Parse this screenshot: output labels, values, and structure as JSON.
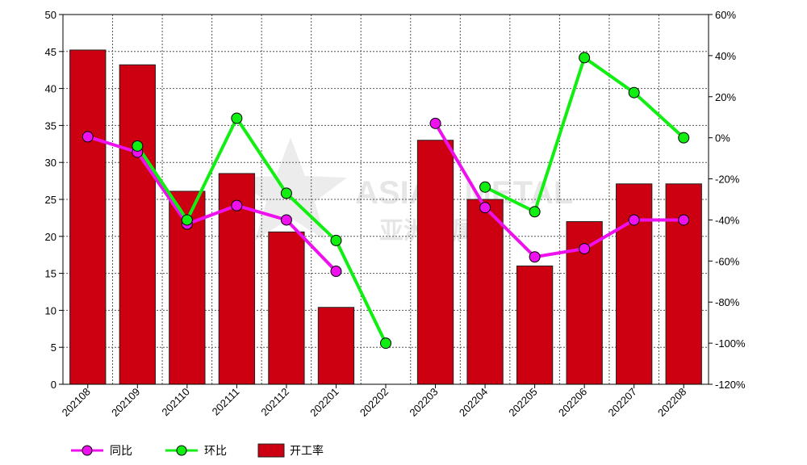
{
  "watermark": {
    "text": "ASIAN METAL",
    "subtext": "亚洲金属网"
  },
  "colors": {
    "bar": "#cc0011",
    "bar_stroke": "#222222",
    "yoy_line": "#ee11ee",
    "mom_line": "#11ee11",
    "grid": "#555555",
    "axis": "#000000"
  },
  "chart_data": {
    "type": "bar",
    "categories": [
      "202108",
      "202109",
      "202110",
      "202111",
      "202112",
      "202201",
      "202202",
      "202203",
      "202204",
      "202205",
      "202206",
      "202207",
      "202208"
    ],
    "series": [
      {
        "name": "开工率",
        "kind": "bar",
        "axis": "left",
        "values": [
          45.2,
          43.2,
          26.1,
          28.5,
          20.6,
          10.4,
          null,
          33.0,
          25.0,
          16.0,
          22.0,
          27.1,
          27.1
        ]
      },
      {
        "name": "同比",
        "kind": "line",
        "axis": "right",
        "unit": "%",
        "values": [
          0.5,
          -7,
          -42,
          -33,
          -40,
          -65,
          null,
          7,
          -34,
          -58,
          -54,
          -40,
          -40
        ]
      },
      {
        "name": "环比",
        "kind": "line",
        "axis": "right",
        "unit": "%",
        "values": [
          null,
          -4,
          -40,
          9.5,
          -27,
          -50,
          -100,
          null,
          -24,
          -36,
          39,
          22,
          0
        ]
      }
    ],
    "y_left": {
      "min": 0,
      "max": 50,
      "step": 5,
      "ticks": [
        "0",
        "5",
        "10",
        "15",
        "20",
        "25",
        "30",
        "35",
        "40",
        "45",
        "50"
      ]
    },
    "y_right": {
      "min": -120,
      "max": 60,
      "step": 20,
      "ticks": [
        "-120%",
        "-100%",
        "-80%",
        "-60%",
        "-40%",
        "-20%",
        "0%",
        "20%",
        "40%",
        "60%"
      ]
    },
    "grid": true,
    "legend_position": "bottom-left",
    "legend": [
      "同比",
      "环比",
      "开工率"
    ]
  }
}
